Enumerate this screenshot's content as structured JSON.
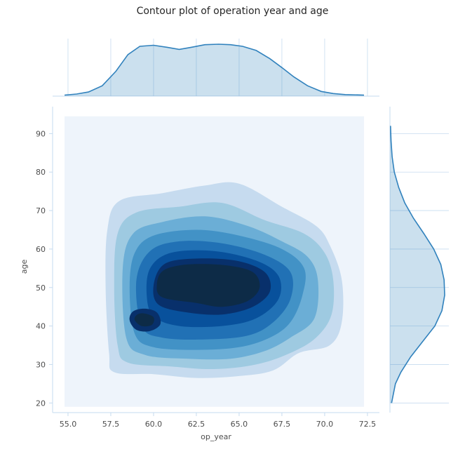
{
  "chart_data": {
    "type": "contour",
    "title": "Contour plot of operation year and age",
    "xlabel": "op_year",
    "ylabel": "age",
    "xlim": [
      54.1,
      73.2
    ],
    "ylim": [
      17.5,
      97
    ],
    "xticks": [
      "55.0",
      "57.5",
      "60.0",
      "62.5",
      "65.0",
      "67.5",
      "70.0",
      "72.5"
    ],
    "xtick_values": [
      55.0,
      57.5,
      60.0,
      62.5,
      65.0,
      67.5,
      70.0,
      72.5
    ],
    "yticks": [
      "20",
      "30",
      "40",
      "50",
      "60",
      "70",
      "80",
      "90"
    ],
    "ytick_values": [
      20,
      30,
      40,
      50,
      60,
      70,
      80,
      90
    ],
    "kde_extent": {
      "x": [
        54.8,
        72.3
      ],
      "y": [
        19.0,
        94.5
      ]
    },
    "grid": true,
    "colormap": "Blues",
    "colors": [
      "#eef4fb",
      "#c6dbef",
      "#9ecae1",
      "#6baed6",
      "#4292c6",
      "#2171b5",
      "#08519c",
      "#08306b",
      "#0d2b47"
    ],
    "levels": [
      {
        "level": 1,
        "polygon": [
          [
            57.4,
            33
          ],
          [
            57.7,
            28
          ],
          [
            60.0,
            27.5
          ],
          [
            62.5,
            26.5
          ],
          [
            65.0,
            27
          ],
          [
            67.0,
            28.5
          ],
          [
            68.5,
            33
          ],
          [
            70.3,
            35
          ],
          [
            71.0,
            41
          ],
          [
            71.0,
            52
          ],
          [
            70.3,
            61
          ],
          [
            69.5,
            66
          ],
          [
            67.5,
            71
          ],
          [
            65.0,
            77
          ],
          [
            63.0,
            76.5
          ],
          [
            60.5,
            74.5
          ],
          [
            58.0,
            72.5
          ],
          [
            57.3,
            65
          ],
          [
            57.2,
            50
          ]
        ]
      },
      {
        "level": 2,
        "polygon": [
          [
            57.9,
            35
          ],
          [
            58.5,
            30.5
          ],
          [
            61.0,
            29.5
          ],
          [
            63.5,
            28.8
          ],
          [
            66.0,
            30
          ],
          [
            68.0,
            33
          ],
          [
            69.5,
            37
          ],
          [
            70.4,
            43
          ],
          [
            70.5,
            52
          ],
          [
            70.0,
            59
          ],
          [
            68.8,
            64
          ],
          [
            66.5,
            67.5
          ],
          [
            64.0,
            72
          ],
          [
            61.5,
            71
          ],
          [
            59.0,
            69.5
          ],
          [
            57.9,
            64
          ],
          [
            57.7,
            50
          ]
        ]
      },
      {
        "level": 3,
        "polygon": [
          [
            58.4,
            37
          ],
          [
            59.5,
            32.5
          ],
          [
            62.0,
            31.5
          ],
          [
            64.5,
            31.5
          ],
          [
            66.5,
            33.5
          ],
          [
            68.0,
            37
          ],
          [
            69.4,
            42
          ],
          [
            69.6,
            52
          ],
          [
            69.0,
            58
          ],
          [
            67.5,
            62
          ],
          [
            65.5,
            66
          ],
          [
            63.0,
            68.5
          ],
          [
            60.5,
            67
          ],
          [
            58.8,
            64
          ],
          [
            58.2,
            55
          ]
        ]
      },
      {
        "level": 4,
        "polygon": [
          [
            58.9,
            38
          ],
          [
            60.0,
            34.5
          ],
          [
            62.5,
            33.8
          ],
          [
            65.0,
            34.5
          ],
          [
            66.8,
            37
          ],
          [
            68.0,
            41
          ],
          [
            68.7,
            48
          ],
          [
            68.8,
            55
          ],
          [
            67.5,
            60
          ],
          [
            65.0,
            63.5
          ],
          [
            62.5,
            65
          ],
          [
            60.0,
            63.5
          ],
          [
            58.9,
            59
          ],
          [
            58.6,
            50
          ]
        ]
      },
      {
        "level": 5,
        "polygon": [
          [
            59.3,
            40
          ],
          [
            60.5,
            37
          ],
          [
            63.0,
            36.5
          ],
          [
            65.5,
            37.5
          ],
          [
            67.0,
            41
          ],
          [
            68.0,
            47
          ],
          [
            68.0,
            54
          ],
          [
            66.5,
            58.5
          ],
          [
            64.0,
            61.5
          ],
          [
            61.5,
            62
          ],
          [
            59.8,
            59.5
          ],
          [
            59.0,
            52
          ]
        ]
      },
      {
        "level": 6,
        "polygon": [
          [
            60.0,
            42.5
          ],
          [
            61.5,
            40
          ],
          [
            64.0,
            40
          ],
          [
            66.0,
            42
          ],
          [
            67.3,
            47
          ],
          [
            67.3,
            53
          ],
          [
            66.0,
            57
          ],
          [
            63.5,
            59.5
          ],
          [
            61.0,
            59
          ],
          [
            59.8,
            55
          ],
          [
            59.6,
            48
          ]
        ]
      },
      {
        "level": 7,
        "polygon": [
          [
            60.3,
            45.5
          ],
          [
            62.0,
            43.5
          ],
          [
            64.0,
            43
          ],
          [
            65.8,
            45
          ],
          [
            66.8,
            49
          ],
          [
            66.5,
            54
          ],
          [
            64.8,
            57
          ],
          [
            62.3,
            57.5
          ],
          [
            60.6,
            56
          ],
          [
            60.0,
            50.5
          ]
        ]
      },
      {
        "level": 8,
        "polygon": [
          [
            60.5,
            47.5
          ],
          [
            62.5,
            46
          ],
          [
            64.0,
            45
          ],
          [
            65.5,
            46.5
          ],
          [
            66.2,
            50
          ],
          [
            65.8,
            54
          ],
          [
            64.2,
            55.8
          ],
          [
            62.0,
            56
          ],
          [
            60.6,
            54.5
          ],
          [
            60.2,
            51
          ]
        ]
      },
      {
        "level": 7,
        "polygon": [
          [
            58.6,
            41.5
          ],
          [
            59.0,
            39
          ],
          [
            59.8,
            38.7
          ],
          [
            60.4,
            40.5
          ],
          [
            60.2,
            43.5
          ],
          [
            59.5,
            44.5
          ],
          [
            58.8,
            43.8
          ]
        ]
      },
      {
        "level": 8,
        "polygon": [
          [
            58.9,
            41.5
          ],
          [
            59.3,
            40
          ],
          [
            59.9,
            40.3
          ],
          [
            60.0,
            42.3
          ],
          [
            59.4,
            43.3
          ],
          [
            59.0,
            42.8
          ]
        ]
      }
    ],
    "marginal_x": {
      "x": [
        54.8,
        55.5,
        56.2,
        57.0,
        57.8,
        58.5,
        59.2,
        60.0,
        60.8,
        61.5,
        62.2,
        63.0,
        63.8,
        64.5,
        65.2,
        66.0,
        66.8,
        67.5,
        68.2,
        69.0,
        69.8,
        70.5,
        71.2,
        72.3
      ],
      "density": [
        0.02,
        0.04,
        0.08,
        0.2,
        0.48,
        0.8,
        0.96,
        0.98,
        0.94,
        0.9,
        0.94,
        0.99,
        1.0,
        0.99,
        0.96,
        0.88,
        0.72,
        0.55,
        0.37,
        0.2,
        0.09,
        0.05,
        0.03,
        0.02
      ]
    },
    "marginal_y": {
      "y": [
        20,
        25,
        28,
        32,
        36,
        40,
        44,
        48,
        52,
        56,
        60,
        64,
        68,
        72,
        76,
        80,
        84,
        88,
        92
      ],
      "density": [
        0.03,
        0.1,
        0.2,
        0.38,
        0.6,
        0.82,
        0.95,
        1.0,
        0.99,
        0.93,
        0.8,
        0.62,
        0.43,
        0.27,
        0.16,
        0.08,
        0.04,
        0.02,
        0.01
      ]
    }
  }
}
